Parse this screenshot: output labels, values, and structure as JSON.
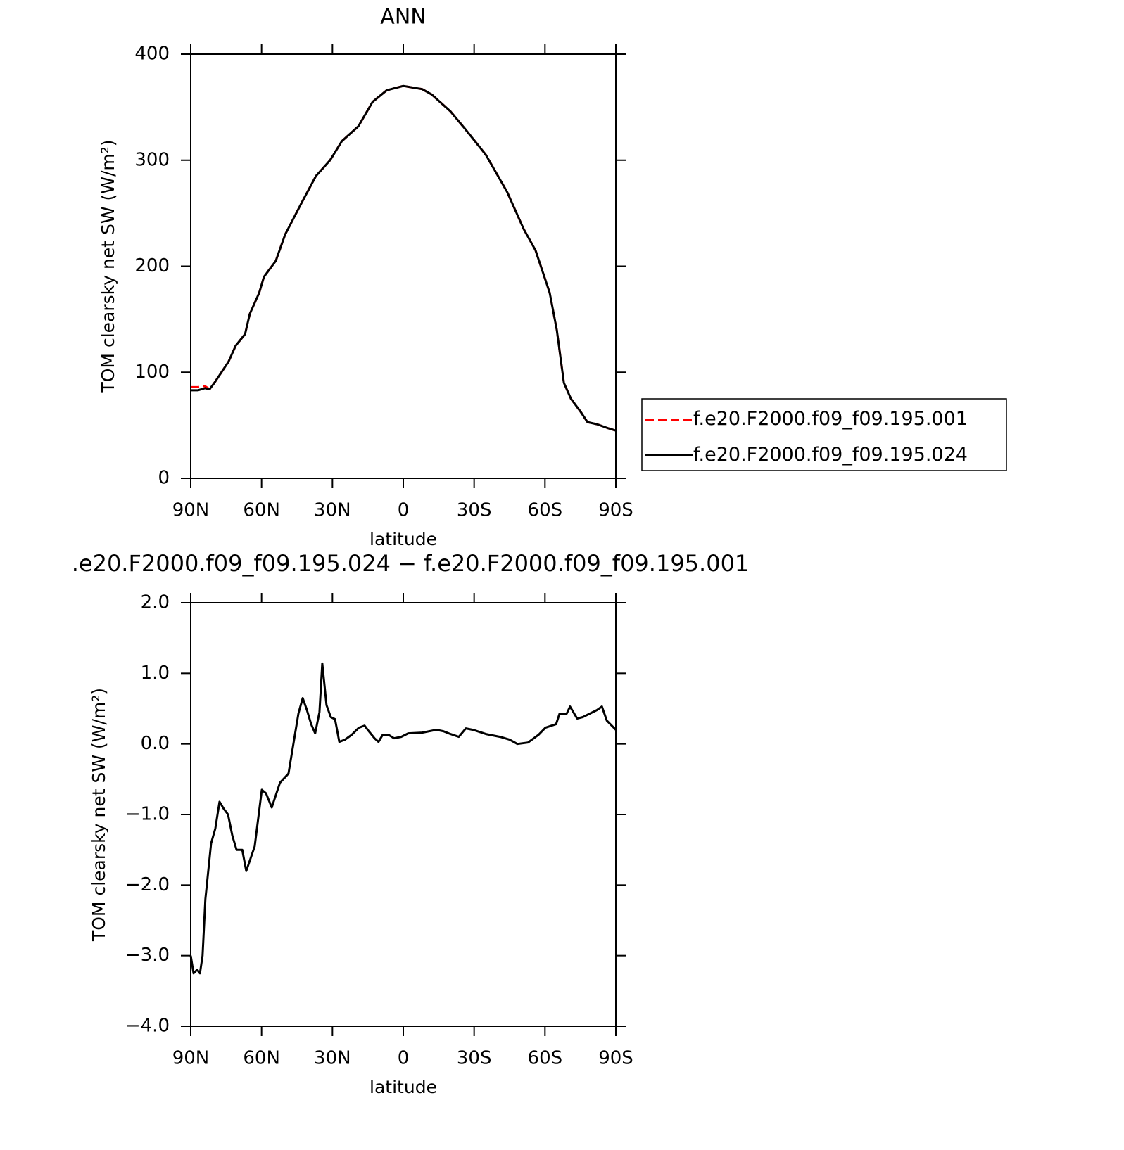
{
  "chart_data": [
    {
      "type": "line",
      "title": "ANN",
      "xlabel": "latitude",
      "ylabel": "TOM clearsky net SW (W/m²)",
      "x": [
        90,
        87,
        84,
        82,
        80,
        77,
        74,
        71,
        67,
        65,
        61,
        59,
        54,
        50,
        43,
        37,
        31,
        26,
        19,
        13,
        7,
        0,
        -8,
        -12,
        -20,
        -26,
        -35,
        -44,
        -51,
        -56,
        -62,
        -65,
        -68,
        -71,
        -75,
        -78,
        -82,
        -87,
        -90
      ],
      "series": [
        {
          "name": "f.e20.F2000.f09_f09.195.001",
          "color": "#ff0000",
          "linestyle": "dashed",
          "values": [
            86,
            86,
            87,
            84,
            90,
            100,
            110,
            125,
            136,
            155,
            175,
            190,
            205,
            230,
            260,
            285,
            300,
            318,
            332,
            355,
            366,
            370,
            367,
            362,
            346,
            330,
            305,
            270,
            235,
            215,
            175,
            140,
            90,
            75,
            63,
            53,
            51,
            47,
            45
          ]
        },
        {
          "name": "f.e20.F2000.f09_f09.195.024",
          "color": "#000000",
          "linestyle": "solid",
          "values": [
            83,
            83,
            85,
            84,
            90,
            100,
            110,
            125,
            136,
            155,
            175,
            190,
            205,
            230,
            260,
            285,
            300,
            318,
            332,
            355,
            366,
            370,
            367,
            362,
            346,
            330,
            305,
            270,
            235,
            215,
            175,
            140,
            90,
            75,
            63,
            53,
            51,
            47,
            45
          ]
        }
      ],
      "xlim": [
        90,
        -90
      ],
      "xticks": [
        {
          "value": 90,
          "label": "90N"
        },
        {
          "value": 60,
          "label": "60N"
        },
        {
          "value": 30,
          "label": "30N"
        },
        0,
        {
          "value": -30,
          "label": "30S"
        },
        {
          "value": -60,
          "label": "60S"
        },
        {
          "value": -90,
          "label": "90S"
        }
      ],
      "ylim": [
        0,
        400
      ],
      "yticks": [
        0,
        100,
        200,
        300,
        400
      ],
      "legend": "right"
    },
    {
      "type": "line",
      "title": ".e20.F2000.f09_f09.195.024 − f.e20.F2000.f09_f09.195.001",
      "xlabel": "latitude",
      "ylabel": "TOM clearsky net SW (W/m²)",
      "x": [
        90,
        88.8,
        87.3,
        86.1,
        85,
        83.8,
        81.4,
        79.6,
        77.8,
        76,
        74.2,
        72.4,
        70.6,
        68.2,
        66.5,
        62.9,
        59.9,
        58.1,
        55.7,
        52.2,
        48.6,
        44.4,
        42.6,
        40.8,
        39,
        37.3,
        35.5,
        34.3,
        32.5,
        30.7,
        28.9,
        27.1,
        24.7,
        21.8,
        18.8,
        16.4,
        14.6,
        12.2,
        10.5,
        8.7,
        6.3,
        3.9,
        0.9,
        -2.1,
        -8,
        -14,
        -17,
        -20,
        -23.5,
        -26.5,
        -29.5,
        -35,
        -41,
        -45,
        -48.3,
        -52.8,
        -57.3,
        -60.2,
        -64.7,
        -66.2,
        -69.2,
        -70.6,
        -73.6,
        -76,
        -79,
        -82,
        -84.1,
        -86.2,
        -90
      ],
      "series": [
        {
          "color": "#000000",
          "linestyle": "solid",
          "values": [
            -3.0,
            -3.25,
            -3.2,
            -3.25,
            -3.0,
            -2.2,
            -1.41,
            -1.2,
            -0.82,
            -0.92,
            -1.0,
            -1.3,
            -1.5,
            -1.5,
            -1.8,
            -1.45,
            -0.65,
            -0.7,
            -0.9,
            -0.55,
            -0.42,
            0.43,
            0.65,
            0.48,
            0.28,
            0.15,
            0.45,
            1.14,
            0.55,
            0.38,
            0.35,
            0.03,
            0.06,
            0.13,
            0.23,
            0.26,
            0.18,
            0.08,
            0.03,
            0.13,
            0.13,
            0.08,
            0.1,
            0.15,
            0.16,
            0.2,
            0.18,
            0.14,
            0.1,
            0.22,
            0.2,
            0.14,
            0.1,
            0.06,
            0,
            0.02,
            0.13,
            0.23,
            0.28,
            0.43,
            0.43,
            0.53,
            0.36,
            0.38,
            0.43,
            0.48,
            0.53,
            0.33,
            0.2
          ]
        }
      ],
      "xlim": [
        90,
        -90
      ],
      "xticks": [
        {
          "value": 90,
          "label": "90N"
        },
        {
          "value": 60,
          "label": "60N"
        },
        {
          "value": 30,
          "label": "30N"
        },
        0,
        {
          "value": -30,
          "label": "30S"
        },
        {
          "value": -60,
          "label": "60S"
        },
        {
          "value": -90,
          "label": "90S"
        }
      ],
      "ylim": [
        -4,
        2
      ],
      "yticks": [
        {
          "value": -4,
          "label": "−4.0"
        },
        {
          "value": -3,
          "label": "−3.0"
        },
        {
          "value": -2,
          "label": "−2.0"
        },
        {
          "value": -1,
          "label": "−1.0"
        },
        {
          "value": 0,
          "label": "0.0"
        },
        {
          "value": 1,
          "label": "1.0"
        },
        {
          "value": 2,
          "label": "2.0"
        }
      ]
    }
  ]
}
